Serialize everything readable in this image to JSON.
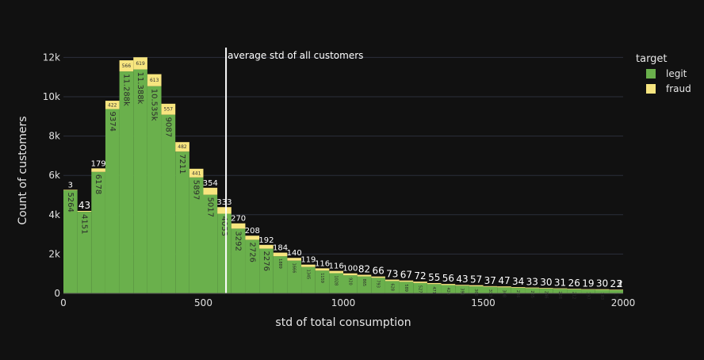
{
  "chart_data": {
    "type": "bar",
    "barmode": "stack",
    "xlabel": "std of total consumption",
    "ylabel": "Count of customers",
    "xlim": [
      0,
      2000
    ],
    "ylim": [
      0,
      12500
    ],
    "x_ticks": [
      0,
      500,
      1000,
      1500,
      2000
    ],
    "y_ticks": [
      0,
      2000,
      4000,
      6000,
      8000,
      10000,
      12000
    ],
    "y_tick_labels": [
      "0",
      "2k",
      "4k",
      "6k",
      "8k",
      "10k",
      "12k"
    ],
    "bin_width": 50,
    "bin_starts": [
      0,
      50,
      100,
      150,
      200,
      250,
      300,
      350,
      400,
      450,
      500,
      550,
      600,
      650,
      700,
      750,
      800,
      850,
      900,
      950,
      1000,
      1050,
      1100,
      1150,
      1200,
      1250,
      1300,
      1350,
      1400,
      1450,
      1500,
      1550,
      1600,
      1650,
      1700,
      1750,
      1800,
      1850,
      1900,
      1950
    ],
    "legend": {
      "title": "target",
      "position": "top-right"
    },
    "grid": true,
    "series": [
      {
        "name": "legit",
        "color": "#6ab04c",
        "values": [
          5264,
          4151,
          6178,
          9374,
          11288,
          11388,
          10535,
          9087,
          7211,
          5897,
          5017,
          4053,
          3292,
          2726,
          2276,
          1889,
          1666,
          1345,
          1159,
          1028,
          920,
          865,
          793,
          628,
          589,
          527,
          471,
          424,
          391,
          360,
          333,
          308,
          286,
          265,
          246,
          228,
          212,
          197,
          183,
          170
        ],
        "labels": [
          "5264",
          "4151",
          "6178",
          "9374",
          "11.288k",
          "11.388k",
          "10.535k",
          "9087",
          "7211",
          "5897",
          "5017",
          "4053",
          "3292",
          "2726",
          "2276",
          "1889",
          "1666",
          "1345",
          "1159",
          "1028",
          "920",
          "865",
          "793",
          "628",
          "589",
          "527",
          "471",
          "424",
          "391",
          "360",
          "333",
          "308",
          "286",
          "265",
          "246",
          "228",
          "212",
          "197",
          "183",
          "170"
        ]
      },
      {
        "name": "fraud",
        "color": "#f7e57f",
        "values": [
          3,
          43,
          179,
          422,
          566,
          619,
          613,
          557,
          482,
          441,
          354,
          333,
          270,
          208,
          192,
          184,
          140,
          119,
          116,
          116,
          100,
          82,
          66,
          73,
          67,
          72,
          55,
          56,
          43,
          57,
          37,
          47,
          34,
          33,
          30,
          31,
          26,
          19,
          30,
          23
        ],
        "labels": [
          "3",
          "43",
          "179",
          "422",
          "566",
          "619",
          "613",
          "557",
          "482",
          "441",
          "354",
          "333",
          "270",
          "208",
          "192",
          "184",
          "140",
          "119",
          "116",
          "116",
          "100",
          "82",
          "66",
          "73",
          "67",
          "72",
          "55",
          "56",
          "43",
          "57",
          "37",
          "47",
          "34",
          "33",
          "30",
          "31",
          "26",
          "19",
          "30",
          "23"
        ]
      }
    ],
    "overflow_label": "2",
    "annotations": [
      {
        "type": "vline",
        "x": 581,
        "text": "average std of all customers",
        "color": "#ffffff"
      }
    ]
  }
}
